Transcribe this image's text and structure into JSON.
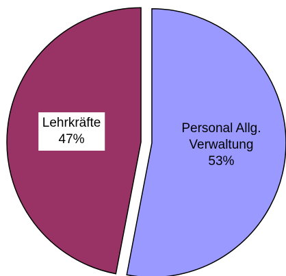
{
  "chart_data": {
    "type": "pie",
    "categories": [
      "Personal Allg. Verwaltung",
      "Lehrkräfte"
    ],
    "values": [
      53,
      47
    ],
    "value_labels": [
      "53%",
      "47%"
    ],
    "colors": [
      "#9999ff",
      "#993366"
    ]
  }
}
